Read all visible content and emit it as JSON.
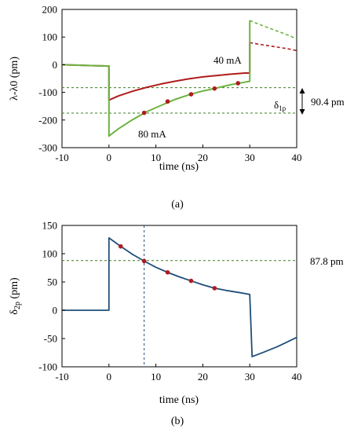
{
  "chart_data": [
    {
      "type": "line",
      "panel_label": "(a)",
      "xlabel": "time (ns)",
      "ylabel": "λ-λ0 (pm)",
      "xlim": [
        -10,
        40
      ],
      "ylim": [
        -300,
        200
      ],
      "xticks": [
        -10,
        0,
        10,
        20,
        30,
        40
      ],
      "yticks": [
        -300,
        -200,
        -100,
        0,
        100,
        200
      ],
      "series": [
        {
          "name": "40 mA",
          "color": "#b01c1c",
          "x": [
            -10,
            0,
            0,
            2,
            5,
            8,
            11,
            14,
            17,
            20,
            23,
            26,
            29,
            30,
            30,
            32,
            35,
            38,
            40
          ],
          "y": [
            0,
            -5,
            -128,
            -113,
            -96,
            -82,
            -70,
            -60,
            -51,
            -44,
            -39,
            -34,
            -30,
            -30,
            80,
            74,
            66,
            58,
            51
          ],
          "solid_until_x": 30
        },
        {
          "name": "80 mA",
          "color": "#6db33f",
          "x": [
            -10,
            0,
            0,
            2,
            5,
            8,
            11,
            14,
            17,
            20,
            23,
            26,
            29,
            30,
            30,
            32,
            35,
            38,
            40
          ],
          "y": [
            0,
            -5,
            -258,
            -232,
            -199,
            -170,
            -148,
            -126,
            -109,
            -95,
            -84,
            -72,
            -63,
            -60,
            160,
            146,
            127,
            108,
            94
          ],
          "solid_until_x": 30
        }
      ],
      "markers": {
        "color": "#b01c1c",
        "points": [
          [
            27.5,
            -67
          ],
          [
            22.5,
            -86
          ],
          [
            17.5,
            -107
          ],
          [
            12.5,
            -133
          ],
          [
            7.5,
            -174
          ]
        ]
      },
      "hlines": [
        {
          "y": -83,
          "color": "#3a7d1e"
        },
        {
          "y": -175,
          "color": "#3a7d1e"
        }
      ],
      "annotations": {
        "label_40": "40 mA",
        "label_80": "80 mA",
        "delta": "δ",
        "delta_sub": "1p",
        "value": "90.4 pm"
      }
    },
    {
      "type": "line",
      "panel_label": "(b)",
      "xlabel": "time (ns)",
      "ylabel_main": "δ",
      "ylabel_sub": "2p",
      "ylabel_unit": " (pm)",
      "xlim": [
        -10,
        40
      ],
      "ylim": [
        -100,
        150
      ],
      "xticks": [
        -10,
        0,
        10,
        20,
        30,
        40
      ],
      "yticks": [
        -100,
        -50,
        0,
        50,
        100,
        150
      ],
      "series": [
        {
          "color": "#1f4e79",
          "x": [
            -10,
            0,
            0,
            2.5,
            5,
            7.5,
            10,
            12.5,
            15,
            17.5,
            20,
            22.5,
            25,
            28,
            30,
            30.5,
            33,
            36,
            40
          ],
          "y": [
            0,
            0,
            128,
            113,
            99,
            87,
            76,
            67,
            59,
            52,
            45,
            39,
            35,
            31,
            28,
            -82,
            -74,
            -64,
            -48
          ]
        }
      ],
      "markers": {
        "color": "#b01c1c",
        "points": [
          [
            2.5,
            113
          ],
          [
            7.5,
            87
          ],
          [
            12.5,
            67
          ],
          [
            17.5,
            52
          ],
          [
            22.5,
            39
          ]
        ]
      },
      "hlines": [
        {
          "y": 87.8,
          "color": "#3a7d1e"
        }
      ],
      "vlines": [
        {
          "x": 7.5,
          "color": "#1f4e79"
        }
      ],
      "annotations": {
        "value": "87.8 pm"
      }
    }
  ]
}
